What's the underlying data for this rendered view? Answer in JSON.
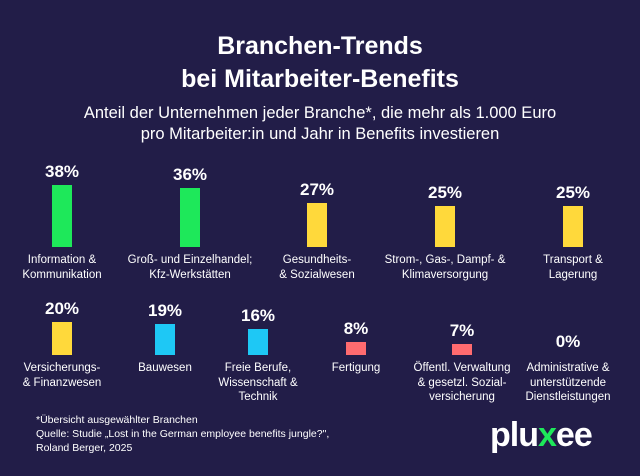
{
  "title": "Branchen-Trends\nbei Mitarbeiter-Benefits",
  "subtitle": "Anteil der Unternehmen jeder Branche*, die mehr als 1.000 Euro\npro Mitarbeiter:in und Jahr in Benefits investieren",
  "footnote": "*Übersicht ausgewählter Branchen\nQuelle: Studie „Lost in the German employee benefits jungle?\",\nRoland Berger, 2025",
  "logo": {
    "pre": "plu",
    "x": "x",
    "post": "ee"
  },
  "colors": {
    "background": "#221d48",
    "high": "#1ee85a",
    "mid": "#ffd93b",
    "low": "#1ec8f5",
    "lowest": "#ff6b6f"
  },
  "chart_data": {
    "type": "bar",
    "unit": "%",
    "categories": [
      "Information &\nKommunikation",
      "Groß- und Einzelhandel;\nKfz-Werkstätten",
      "Gesundheits-\n& Sozialwesen",
      "Strom-, Gas-, Dampf- &\nKlimaversorgung",
      "Transport &\nLagerung",
      "Versicherungs-\n& Finanzwesen",
      "Bauwesen",
      "Freie Berufe,\nWissenschaft &\nTechnik",
      "Fertigung",
      "Öffentl. Verwaltung\n& gesetzl. Sozial-\nversicherung",
      "Administrative &\nunterstützende\nDienstleistungen"
    ],
    "values": [
      38,
      36,
      27,
      25,
      25,
      20,
      19,
      16,
      8,
      7,
      0
    ],
    "value_labels": [
      "38%",
      "36%",
      "27%",
      "25%",
      "25%",
      "20%",
      "19%",
      "16%",
      "8%",
      "7%",
      "0%"
    ],
    "bar_colors": [
      "#1ee85a",
      "#1ee85a",
      "#ffd93b",
      "#ffd93b",
      "#ffd93b",
      "#ffd93b",
      "#1ec8f5",
      "#1ec8f5",
      "#ff6b6f",
      "#ff6b6f",
      "#ff6b6f"
    ]
  }
}
